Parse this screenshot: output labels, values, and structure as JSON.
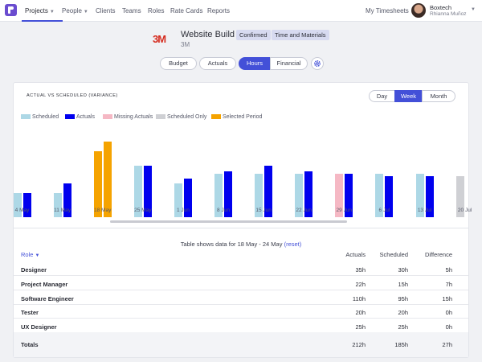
{
  "nav": {
    "items": [
      "Projects",
      "People",
      "Clients",
      "Teams",
      "Roles",
      "Rate Cards",
      "Reports"
    ],
    "timesheets": "My Timesheets",
    "user_org": "Boxtech",
    "user_name": "Rhianna Muñoz"
  },
  "project": {
    "client_logo": "3M",
    "title": "Website Build",
    "client": "3M",
    "badges": [
      "Confirmed",
      "Time and Materials"
    ]
  },
  "tabs": [
    "Budget",
    "Actuals",
    "Hours",
    "Financial"
  ],
  "chart_heading": "ACTUAL VS SCHEDULED (VARIANCE)",
  "period": {
    "options": [
      "Day",
      "Week",
      "Month"
    ],
    "selected": "Week"
  },
  "legend": [
    {
      "label": "Scheduled",
      "color": "#add8e6"
    },
    {
      "label": "Actuals",
      "color": "#0000ee"
    },
    {
      "label": "Missing Actuals",
      "color": "#f5b8c4"
    },
    {
      "label": "Scheduled Only",
      "color": "#cfd0d4"
    },
    {
      "label": "Selected Period",
      "color": "#f5a300"
    }
  ],
  "chart_data": {
    "type": "bar",
    "title": "",
    "categories": [
      "4 May",
      "11 May",
      "18 May",
      "25 May",
      "1 Jun",
      "8 Jun",
      "15 Jun",
      "22 Jun",
      "29 Jun",
      "6 Jul",
      "13 Jul",
      "20 Jul"
    ],
    "series": [
      {
        "name": "Scheduled",
        "values": [
          10,
          10,
          27,
          21,
          14,
          18,
          18,
          18,
          18,
          18,
          18,
          17
        ]
      },
      {
        "name": "Actuals",
        "values": [
          10,
          14,
          31,
          21,
          16,
          19,
          21,
          19,
          18,
          17,
          17,
          null
        ]
      }
    ],
    "bar_states": [
      "normal",
      "normal",
      "selected",
      "normal",
      "normal",
      "normal",
      "normal",
      "normal",
      "missing",
      "normal",
      "normal",
      "scheduled-only"
    ],
    "ylim": [
      0,
      38
    ],
    "grid": false
  },
  "table": {
    "note_prefix": "Table shows data for 18 May - 24 May",
    "reset": "(reset)",
    "headers": {
      "role": "Role",
      "actuals": "Actuals",
      "scheduled": "Scheduled",
      "difference": "Difference"
    },
    "rows": [
      {
        "role": "Designer",
        "actuals": "35h",
        "scheduled": "30h",
        "difference": "5h"
      },
      {
        "role": "Project Manager",
        "actuals": "22h",
        "scheduled": "15h",
        "difference": "7h"
      },
      {
        "role": "Software Engineer",
        "actuals": "110h",
        "scheduled": "95h",
        "difference": "15h"
      },
      {
        "role": "Tester",
        "actuals": "20h",
        "scheduled": "20h",
        "difference": "0h"
      },
      {
        "role": "UX Designer",
        "actuals": "25h",
        "scheduled": "25h",
        "difference": "0h"
      }
    ],
    "totals": {
      "label": "Totals",
      "actuals": "212h",
      "scheduled": "185h",
      "difference": "27h"
    }
  }
}
